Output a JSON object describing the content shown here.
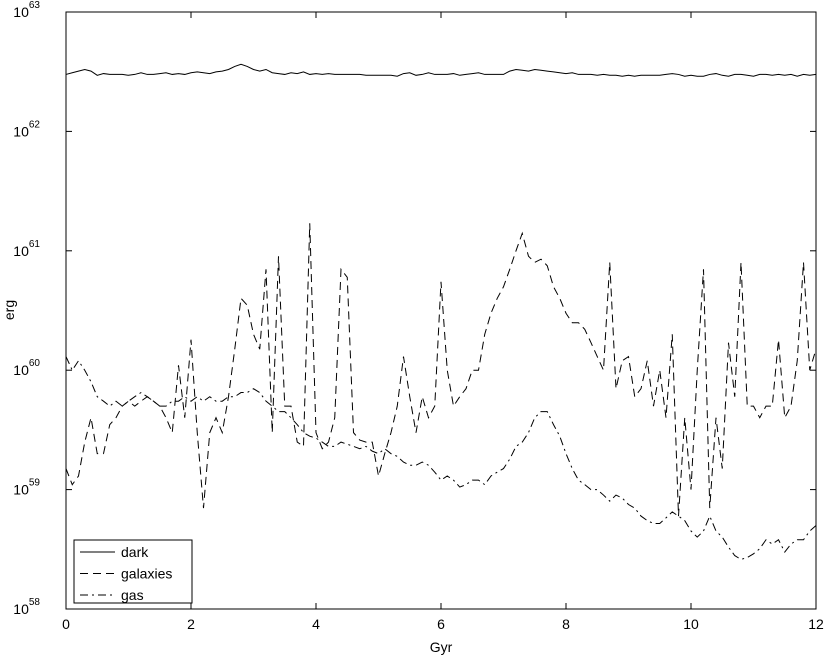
{
  "chart_data": {
    "type": "line",
    "x_label": "Gyr",
    "y_label": "erg",
    "log_y": true,
    "legend": "lower left",
    "xlim": [
      0,
      12
    ],
    "xticks": [
      0,
      2,
      4,
      6,
      8,
      10,
      12
    ],
    "ylim": [
      1e+58,
      1e+63
    ],
    "yticks": [
      {
        "value": 1e+58,
        "label": "10^58"
      },
      {
        "value": 1e+59,
        "label": "10^59"
      },
      {
        "value": 1e+60,
        "label": "10^60"
      },
      {
        "value": 1e+61,
        "label": "10^61"
      },
      {
        "value": 1e+62,
        "label": "10^62"
      },
      {
        "value": 1e+63,
        "label": "10^63"
      }
    ],
    "x": [
      0,
      0.1,
      0.2,
      0.3,
      0.4,
      0.5,
      0.6,
      0.7,
      0.8,
      0.9,
      1,
      1.1,
      1.2,
      1.3,
      1.4,
      1.5,
      1.6,
      1.7,
      1.8,
      1.9,
      2,
      2.1,
      2.2,
      2.3,
      2.4,
      2.5,
      2.6,
      2.7,
      2.8,
      2.9,
      3,
      3.1,
      3.2,
      3.3,
      3.4,
      3.5,
      3.6,
      3.7,
      3.8,
      3.9,
      4,
      4.1,
      4.2,
      4.3,
      4.4,
      4.5,
      4.6,
      4.7,
      4.8,
      4.9,
      5,
      5.1,
      5.2,
      5.3,
      5.4,
      5.5,
      5.6,
      5.7,
      5.8,
      5.9,
      6,
      6.1,
      6.2,
      6.3,
      6.4,
      6.5,
      6.6,
      6.7,
      6.8,
      6.9,
      7,
      7.1,
      7.2,
      7.3,
      7.4,
      7.5,
      7.6,
      7.7,
      7.8,
      7.9,
      8,
      8.1,
      8.2,
      8.3,
      8.4,
      8.5,
      8.6,
      8.7,
      8.8,
      8.9,
      9,
      9.1,
      9.2,
      9.3,
      9.4,
      9.5,
      9.6,
      9.7,
      9.8,
      9.9,
      10,
      10.1,
      10.2,
      10.3,
      10.4,
      10.5,
      10.6,
      10.7,
      10.8,
      10.9,
      11,
      11.1,
      11.2,
      11.3,
      11.4,
      11.5,
      11.6,
      11.7,
      11.8,
      11.9,
      12
    ],
    "series": [
      {
        "name": "dark",
        "color": "#000000",
        "style": "solid",
        "values": [
          3e+62,
          3.1e+62,
          3.2e+62,
          3.3e+62,
          3.2e+62,
          2.95e+62,
          3.05e+62,
          3e+62,
          3e+62,
          3e+62,
          2.95e+62,
          3e+62,
          3.1e+62,
          3e+62,
          3e+62,
          3.05e+62,
          3.1e+62,
          3e+62,
          3.05e+62,
          3e+62,
          3.1e+62,
          3.15e+62,
          3.1e+62,
          3.05e+62,
          3.15e+62,
          3.2e+62,
          3.3e+62,
          3.5e+62,
          3.65e+62,
          3.5e+62,
          3.3e+62,
          3.2e+62,
          3.3e+62,
          3.1e+62,
          3.05e+62,
          3e+62,
          3.1e+62,
          3.05e+62,
          3.15e+62,
          3e+62,
          3.05e+62,
          3e+62,
          3.05e+62,
          3e+62,
          3e+62,
          3e+62,
          3e+62,
          3e+62,
          2.95e+62,
          2.95e+62,
          2.95e+62,
          2.95e+62,
          2.95e+62,
          2.9e+62,
          3.05e+62,
          3.1e+62,
          2.95e+62,
          3e+62,
          3.1e+62,
          3e+62,
          3e+62,
          3e+62,
          3.05e+62,
          2.95e+62,
          3e+62,
          3.05e+62,
          3.1e+62,
          3e+62,
          3e+62,
          3e+62,
          3e+62,
          3.2e+62,
          3.3e+62,
          3.25e+62,
          3.2e+62,
          3.3e+62,
          3.25e+62,
          3.2e+62,
          3.15e+62,
          3.1e+62,
          3.05e+62,
          3.1e+62,
          3e+62,
          3e+62,
          3e+62,
          2.95e+62,
          3e+62,
          2.95e+62,
          2.95e+62,
          2.9e+62,
          2.95e+62,
          2.9e+62,
          2.95e+62,
          2.95e+62,
          2.95e+62,
          2.95e+62,
          3e+62,
          3.05e+62,
          3e+62,
          2.9e+62,
          2.95e+62,
          2.9e+62,
          2.9e+62,
          3e+62,
          3.05e+62,
          2.95e+62,
          2.9e+62,
          3e+62,
          3e+62,
          2.95e+62,
          2.9e+62,
          3e+62,
          3e+62,
          2.95e+62,
          3e+62,
          2.95e+62,
          3e+62,
          2.9e+62,
          3e+62,
          2.95e+62,
          3e+62
        ]
      },
      {
        "name": "galaxies",
        "color": "#000000",
        "style": "dashed",
        "values": [
          1.5e+59,
          1.1e+59,
          1.3e+59,
          2.5e+59,
          4e+59,
          2e+59,
          2e+59,
          3.5e+59,
          4e+59,
          5e+59,
          5.5e+59,
          5e+59,
          5.5e+59,
          6e+59,
          5.5e+59,
          5e+59,
          4e+59,
          3e+59,
          1.1e+60,
          4e+59,
          1.8e+60,
          3e+59,
          7e+58,
          3e+59,
          4e+59,
          3e+59,
          6e+59,
          1.5e+60,
          4e+60,
          3.5e+60,
          2e+60,
          1.5e+60,
          7e+60,
          3e+59,
          9e+60,
          5e+59,
          5e+59,
          2.5e+59,
          2.3e+59,
          1.7e+61,
          3e+59,
          2.2e+59,
          2.5e+59,
          4e+59,
          7e+60,
          6e+60,
          3e+59,
          2.6e+59,
          2.5e+59,
          2.5e+59,
          1.3e+59,
          2e+59,
          3e+59,
          5e+59,
          1.3e+60,
          6e+59,
          3e+59,
          6e+59,
          4e+59,
          5e+59,
          5.5e+60,
          1e+60,
          5e+59,
          6e+59,
          7e+59,
          1e+60,
          1e+60,
          2e+60,
          3e+60,
          4e+60,
          5e+60,
          7e+60,
          1e+61,
          1.4e+61,
          9e+60,
          8e+60,
          8.5e+60,
          7.5e+60,
          5e+60,
          4e+60,
          3e+60,
          2.5e+60,
          2.5e+60,
          2.2e+60,
          1.7e+60,
          1.3e+60,
          1e+60,
          8e+60,
          7e+59,
          1.2e+60,
          1.3e+60,
          6e+59,
          7e+59,
          1.2e+60,
          5e+59,
          1e+60,
          4e+59,
          2e+60,
          6e+58,
          4e+59,
          1e+59,
          1e+60,
          7e+60,
          7e+58,
          4e+59,
          1.5e+59,
          1.7e+60,
          6e+59,
          8e+60,
          5e+59,
          5e+59,
          4e+59,
          5e+59,
          5e+59,
          1.8e+60,
          4e+59,
          5e+59,
          1.2e+60,
          8e+60,
          1e+60,
          1.5e+60
        ]
      },
      {
        "name": "gas",
        "color": "#000000",
        "style": "dashdot",
        "values": [
          1.3e+60,
          1e+60,
          1.2e+60,
          1e+60,
          8e+59,
          6e+59,
          5.5e+59,
          5e+59,
          5.5e+59,
          5e+59,
          5.5e+59,
          6e+59,
          6.5e+59,
          6e+59,
          5.5e+59,
          5e+59,
          5e+59,
          5.5e+59,
          5.5e+59,
          6e+59,
          5.5e+59,
          6e+59,
          5.5e+59,
          6e+59,
          5.5e+59,
          5.5e+59,
          6e+59,
          6e+59,
          6.5e+59,
          6.5e+59,
          7e+59,
          6.5e+59,
          5.5e+59,
          5e+59,
          4.5e+59,
          4.5e+59,
          4e+59,
          3.5e+59,
          3e+59,
          2.8e+59,
          2.7e+59,
          2.5e+59,
          2.3e+59,
          2.3e+59,
          2.5e+59,
          2.4e+59,
          2.3e+59,
          2.2e+59,
          2.3e+59,
          2.1e+59,
          2e+59,
          2.2e+59,
          2e+59,
          1.9e+59,
          1.7e+59,
          1.6e+59,
          1.6e+59,
          1.7e+59,
          1.6e+59,
          1.4e+59,
          1.2e+59,
          1.3e+59,
          1.2e+59,
          1.05e+59,
          1.1e+59,
          1.2e+59,
          1.2e+59,
          1.1e+59,
          1.3e+59,
          1.4e+59,
          1.5e+59,
          1.8e+59,
          2.3e+59,
          2.5e+59,
          3e+59,
          4e+59,
          4.5e+59,
          4.5e+59,
          3.5e+59,
          2.8e+59,
          2e+59,
          1.5e+59,
          1.2e+59,
          1.1e+59,
          1e+59,
          1e+59,
          9e+58,
          8e+58,
          9e+58,
          8.5e+58,
          7.5e+58,
          7e+58,
          6e+58,
          5.5e+58,
          5.2e+58,
          5.2e+58,
          5.8e+58,
          6.5e+58,
          6e+58,
          5.5e+58,
          4.5e+58,
          4e+58,
          4.5e+58,
          6e+58,
          4.5e+58,
          4e+58,
          3.3e+58,
          2.8e+58,
          2.6e+58,
          2.7e+58,
          2.9e+58,
          3.2e+58,
          3.8e+58,
          3.5e+58,
          3.8e+58,
          3e+58,
          3.5e+58,
          3.8e+58,
          3.8e+58,
          4.5e+58,
          5e+58
        ]
      }
    ]
  }
}
